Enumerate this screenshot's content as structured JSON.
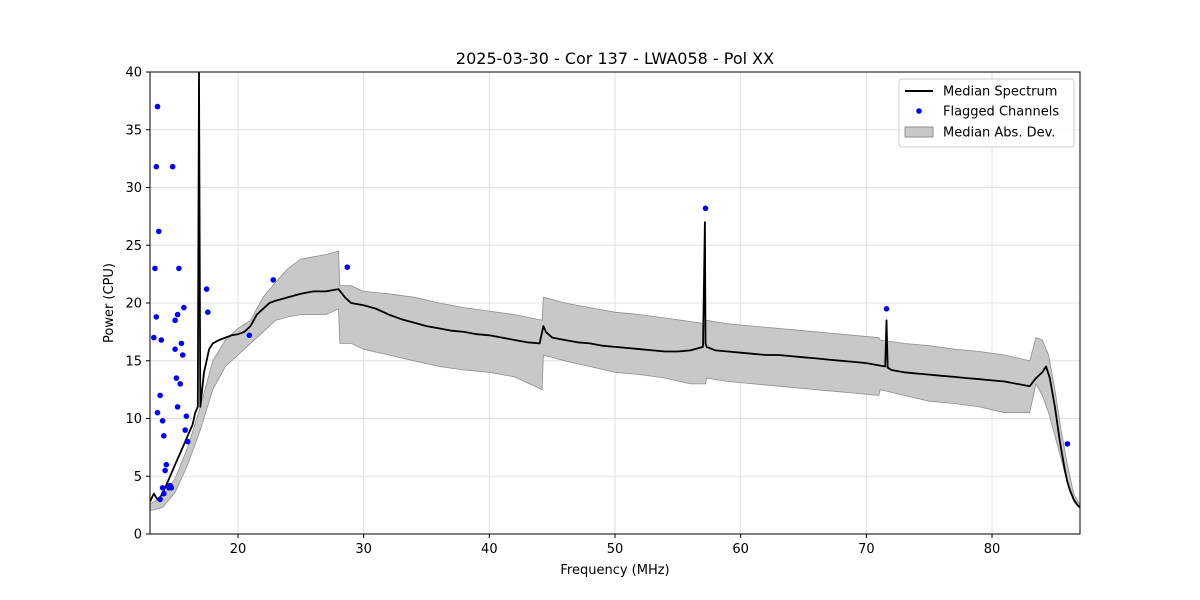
{
  "chart_data": {
    "type": "line",
    "title": "2025-03-30 - Cor 137 - LWA058 - Pol XX",
    "xlabel": "Frequency (MHz)",
    "ylabel": "Power (CPU)",
    "xlim": [
      13,
      87
    ],
    "ylim": [
      0,
      40
    ],
    "xticks": [
      20,
      30,
      40,
      50,
      60,
      70,
      80
    ],
    "yticks": [
      0,
      5,
      10,
      15,
      20,
      25,
      30,
      35,
      40
    ],
    "grid": true,
    "legend_position": "top-right",
    "legend": [
      "Median Spectrum",
      "Flagged Channels",
      "Median Abs. Dev."
    ],
    "colors": {
      "median": "#000000",
      "flagged": "#0000ff",
      "band": "#c8c8c8",
      "band_edge": "#909090",
      "grid": "#e0e0e0"
    },
    "series": [
      {
        "name": "Median Spectrum",
        "x": [
          13.0,
          13.3,
          13.6,
          13.8,
          14.0,
          14.2,
          14.4,
          14.6,
          14.8,
          15.0,
          15.2,
          15.4,
          15.6,
          15.8,
          16.0,
          16.2,
          16.4,
          16.6,
          16.8,
          16.9,
          17.0,
          17.1,
          17.3,
          17.5,
          17.7,
          18.0,
          18.5,
          19.0,
          19.5,
          20.0,
          20.5,
          21.0,
          21.5,
          22.0,
          22.5,
          23.0,
          24.0,
          25.0,
          26.0,
          27.0,
          28.0,
          28.5,
          29.0,
          30.0,
          31.0,
          32.0,
          33.0,
          34.0,
          35.0,
          36.0,
          37.0,
          38.0,
          39.0,
          40.0,
          41.0,
          42.0,
          43.0,
          44.0,
          44.3,
          44.5,
          45.0,
          46.0,
          47.0,
          48.0,
          49.0,
          50.0,
          51.0,
          52.0,
          53.0,
          54.0,
          55.0,
          56.0,
          57.0,
          57.15,
          57.2,
          57.3,
          58.0,
          59.0,
          60.0,
          61.0,
          62.0,
          63.0,
          64.0,
          65.0,
          66.0,
          67.0,
          68.0,
          69.0,
          70.0,
          71.0,
          71.5,
          71.6,
          71.7,
          72.0,
          73.0,
          74.0,
          75.0,
          76.0,
          77.0,
          78.0,
          79.0,
          80.0,
          81.0,
          82.0,
          83.0,
          83.5,
          84.0,
          84.3,
          84.6,
          85.0,
          85.4,
          85.8,
          86.0,
          86.2,
          86.5,
          86.8,
          87.0
        ],
        "y": [
          2.8,
          3.5,
          3.0,
          3.2,
          3.5,
          4.0,
          4.5,
          5.0,
          5.5,
          6.0,
          6.5,
          7.0,
          7.5,
          8.0,
          8.5,
          9.0,
          9.5,
          10.5,
          11.0,
          40.0,
          11.0,
          12.0,
          14.0,
          15.0,
          16.0,
          16.5,
          16.8,
          17.0,
          17.2,
          17.3,
          17.5,
          18.0,
          19.0,
          19.5,
          20.0,
          20.2,
          20.5,
          20.8,
          21.0,
          21.0,
          21.2,
          20.5,
          20.0,
          19.8,
          19.5,
          19.0,
          18.6,
          18.3,
          18.0,
          17.8,
          17.6,
          17.5,
          17.3,
          17.2,
          17.0,
          16.8,
          16.6,
          16.5,
          18.0,
          17.5,
          17.0,
          16.8,
          16.6,
          16.5,
          16.3,
          16.2,
          16.1,
          16.0,
          15.9,
          15.8,
          15.8,
          15.9,
          16.2,
          27.0,
          16.5,
          16.2,
          15.9,
          15.8,
          15.7,
          15.6,
          15.5,
          15.5,
          15.4,
          15.3,
          15.2,
          15.1,
          15.0,
          14.9,
          14.8,
          14.6,
          14.5,
          18.5,
          14.4,
          14.2,
          14.0,
          13.9,
          13.8,
          13.7,
          13.6,
          13.5,
          13.4,
          13.3,
          13.2,
          13.0,
          12.8,
          13.5,
          14.0,
          14.5,
          13.5,
          11.0,
          8.0,
          5.5,
          4.5,
          3.8,
          3.0,
          2.5,
          2.3
        ]
      },
      {
        "name": "Median Abs. Dev.",
        "x": [
          13.0,
          14.0,
          15.0,
          16.0,
          17.0,
          18.0,
          19.0,
          20.0,
          21.0,
          22.0,
          23.0,
          24.0,
          25.0,
          26.0,
          27.0,
          28.0,
          28.1,
          29.0,
          30.0,
          32.0,
          34.0,
          36.0,
          38.0,
          40.0,
          42.0,
          44.2,
          44.3,
          46.0,
          48.0,
          50.0,
          52.0,
          54.0,
          56.0,
          57.2,
          57.3,
          59.0,
          61.0,
          63.0,
          65.0,
          67.0,
          69.0,
          71.0,
          71.1,
          73.0,
          75.0,
          77.0,
          79.0,
          81.0,
          83.0,
          83.5,
          84.0,
          84.5,
          85.0,
          85.5,
          86.0,
          86.5,
          87.0
        ],
        "upper": [
          2.6,
          3.2,
          4.8,
          7.5,
          11.0,
          15.0,
          16.8,
          17.8,
          18.5,
          20.5,
          21.8,
          23.0,
          23.8,
          24.0,
          24.2,
          24.5,
          21.5,
          21.5,
          21.0,
          20.8,
          20.5,
          20.0,
          19.6,
          19.3,
          19.0,
          18.5,
          20.5,
          20.0,
          19.6,
          19.2,
          19.0,
          18.7,
          18.4,
          18.2,
          18.5,
          18.2,
          18.0,
          17.8,
          17.6,
          17.4,
          17.2,
          17.0,
          16.8,
          16.5,
          16.3,
          16.0,
          15.8,
          15.5,
          15.0,
          17.0,
          16.8,
          15.5,
          12.5,
          9.0,
          6.0,
          3.5,
          2.5
        ],
        "lower": [
          2.0,
          2.3,
          3.6,
          6.0,
          9.0,
          12.5,
          14.5,
          15.5,
          16.5,
          17.5,
          18.5,
          18.8,
          19.0,
          19.0,
          19.0,
          19.5,
          16.5,
          16.5,
          16.0,
          15.5,
          15.0,
          14.5,
          14.2,
          14.0,
          13.6,
          12.5,
          15.5,
          15.0,
          14.5,
          14.0,
          13.8,
          13.5,
          13.0,
          13.0,
          13.5,
          13.2,
          13.0,
          12.8,
          12.6,
          12.4,
          12.2,
          12.0,
          12.5,
          12.0,
          11.5,
          11.3,
          11.0,
          10.5,
          10.5,
          13.0,
          12.0,
          10.5,
          8.5,
          6.5,
          4.5,
          2.8,
          2.2
        ]
      },
      {
        "name": "Flagged Channels",
        "x": [
          13.3,
          13.4,
          13.5,
          13.5,
          13.6,
          13.6,
          13.7,
          13.8,
          13.8,
          13.9,
          14.0,
          14.0,
          14.1,
          14.1,
          14.2,
          14.3,
          14.5,
          14.6,
          14.7,
          14.8,
          15.0,
          15.0,
          15.1,
          15.2,
          15.2,
          15.3,
          15.4,
          15.5,
          15.6,
          15.7,
          15.8,
          15.9,
          16.0,
          17.5,
          17.6,
          20.9,
          22.8,
          28.7,
          57.2,
          71.6,
          86.0
        ],
        "y": [
          17.0,
          23.0,
          31.8,
          18.8,
          37.0,
          10.5,
          26.2,
          12.0,
          3.0,
          16.8,
          9.8,
          4.0,
          8.5,
          3.5,
          5.5,
          6.0,
          4.0,
          4.2,
          4.0,
          31.8,
          18.5,
          16.0,
          13.5,
          19.0,
          11.0,
          23.0,
          13.0,
          16.5,
          15.5,
          19.6,
          9.0,
          10.2,
          8.0,
          21.2,
          19.2,
          17.2,
          22.0,
          23.1,
          28.2,
          19.5,
          7.8
        ]
      }
    ]
  }
}
